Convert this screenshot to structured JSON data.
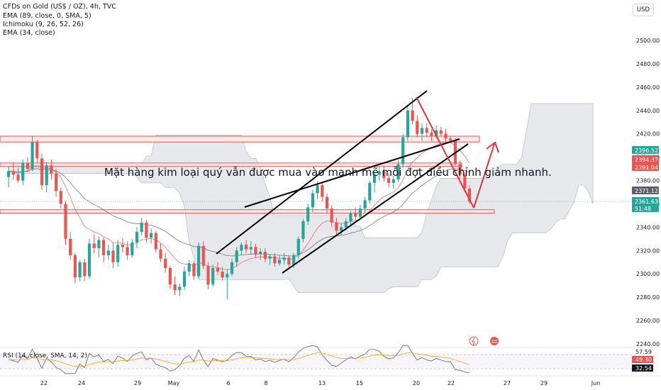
{
  "header": {
    "symbol_line": "CFDs on Gold (US$ / OZ), 4h, TVC",
    "indicators": [
      "EMA (89, close, 0, SMA, 5)",
      "Ichimoku (9, 26, 52, 26)",
      "EMA (34, close)"
    ]
  },
  "currency_button": "USD",
  "annotation": "Mặt hàng kim loại quý vẫn được mua vào mạnh mẽ mỗi đợt điều chỉnh giảm nhanh.",
  "rsi": {
    "label": "RSI (14, close, SMA, 14, 2)",
    "axis_labels": [
      "57.59",
      "32.54"
    ],
    "value_badges": [
      {
        "text": "49.30",
        "color": "#ef5350"
      },
      {
        "text": "32.54",
        "color": "#131722"
      }
    ]
  },
  "colors": {
    "up": "#26a69a",
    "down": "#ef5350",
    "cloud": "#c7cbd3",
    "ema_red": "#ef5350",
    "ema_dark": "#5d606b",
    "trendline": "#000000",
    "arrow": "#e8323c",
    "zone_border": "#ef5350",
    "zone_fill": "#fde9e9"
  },
  "chart_data": {
    "type": "candlestick",
    "symbol": "CFDs on Gold (US$ / OZ)",
    "timeframe": "4h",
    "y_axis": {
      "ticks": [
        2240,
        2260,
        2280,
        2300,
        2320,
        2340,
        2360,
        2380,
        2400,
        2420,
        2440,
        2460,
        2480,
        2500
      ],
      "labels": [
        "2240.00",
        "2260.00",
        "2280.00",
        "2300.00",
        "2320.00",
        "2340.00",
        "2360.00",
        "2380.00",
        "2400.00",
        "2420.00",
        "2440.00",
        "2460.00",
        "2480.00",
        "2500.00"
      ],
      "range": [
        2235,
        2520
      ]
    },
    "x_axis": {
      "labels": [
        "22",
        "24",
        "29",
        "May",
        "6",
        "8",
        "13",
        "15",
        "20",
        "22",
        "27",
        "29",
        "Jun"
      ]
    },
    "price_badges": [
      {
        "text": "2396.52",
        "color": "#26a69a"
      },
      {
        "text": "2394.37",
        "color": "#ef5350"
      },
      {
        "text": "2391.04",
        "color": "#ef5350"
      },
      {
        "text": "2371.12",
        "color": "#5d606b"
      },
      {
        "text": "2361.63",
        "color": "#26a69a"
      },
      {
        "text": "51:48",
        "color": "#26a69a"
      }
    ],
    "zones": [
      {
        "low": 2413,
        "high": 2418
      },
      {
        "low": 2392,
        "high": 2395
      },
      {
        "low": 2352,
        "high": 2355
      }
    ],
    "ohlc": [
      [
        2383,
        2392,
        2374,
        2388
      ],
      [
        2388,
        2396,
        2381,
        2385
      ],
      [
        2385,
        2391,
        2378,
        2380
      ],
      [
        2380,
        2398,
        2376,
        2395
      ],
      [
        2395,
        2400,
        2387,
        2390
      ],
      [
        2390,
        2418,
        2388,
        2413
      ],
      [
        2413,
        2415,
        2395,
        2399
      ],
      [
        2399,
        2403,
        2372,
        2376
      ],
      [
        2376,
        2396,
        2370,
        2393
      ],
      [
        2393,
        2398,
        2381,
        2386
      ],
      [
        2386,
        2390,
        2366,
        2371
      ],
      [
        2371,
        2374,
        2356,
        2360
      ],
      [
        2360,
        2362,
        2325,
        2330
      ],
      [
        2330,
        2336,
        2312,
        2316
      ],
      [
        2316,
        2318,
        2292,
        2297
      ],
      [
        2297,
        2312,
        2294,
        2310
      ],
      [
        2310,
        2313,
        2294,
        2298
      ],
      [
        2298,
        2330,
        2296,
        2326
      ],
      [
        2326,
        2334,
        2318,
        2322
      ],
      [
        2322,
        2332,
        2314,
        2329
      ],
      [
        2329,
        2331,
        2310,
        2316
      ],
      [
        2316,
        2325,
        2312,
        2320
      ],
      [
        2320,
        2327,
        2305,
        2310
      ],
      [
        2310,
        2329,
        2306,
        2325
      ],
      [
        2325,
        2331,
        2318,
        2323
      ],
      [
        2323,
        2328,
        2312,
        2316
      ],
      [
        2316,
        2330,
        2314,
        2327
      ],
      [
        2327,
        2340,
        2322,
        2336
      ],
      [
        2336,
        2348,
        2333,
        2344
      ],
      [
        2344,
        2346,
        2327,
        2331
      ],
      [
        2331,
        2339,
        2326,
        2335
      ],
      [
        2335,
        2337,
        2318,
        2321
      ],
      [
        2321,
        2326,
        2310,
        2313
      ],
      [
        2313,
        2318,
        2301,
        2305
      ],
      [
        2305,
        2307,
        2287,
        2291
      ],
      [
        2291,
        2298,
        2282,
        2286
      ],
      [
        2286,
        2292,
        2281,
        2289
      ],
      [
        2289,
        2306,
        2286,
        2302
      ],
      [
        2302,
        2312,
        2298,
        2309
      ],
      [
        2309,
        2311,
        2295,
        2298
      ],
      [
        2298,
        2327,
        2296,
        2324
      ],
      [
        2324,
        2328,
        2304,
        2307
      ],
      [
        2307,
        2310,
        2287,
        2291
      ],
      [
        2291,
        2308,
        2289,
        2305
      ],
      [
        2305,
        2310,
        2299,
        2302
      ],
      [
        2302,
        2306,
        2294,
        2297
      ],
      [
        2297,
        2304,
        2278,
        2300
      ],
      [
        2300,
        2313,
        2298,
        2310
      ],
      [
        2310,
        2323,
        2306,
        2320
      ],
      [
        2320,
        2327,
        2316,
        2325
      ],
      [
        2325,
        2329,
        2318,
        2321
      ],
      [
        2321,
        2328,
        2317,
        2323
      ],
      [
        2323,
        2326,
        2314,
        2317
      ],
      [
        2317,
        2322,
        2312,
        2319
      ],
      [
        2319,
        2322,
        2310,
        2313
      ],
      [
        2313,
        2317,
        2308,
        2315
      ],
      [
        2315,
        2318,
        2306,
        2309
      ],
      [
        2309,
        2316,
        2307,
        2312
      ],
      [
        2312,
        2318,
        2308,
        2314
      ],
      [
        2314,
        2316,
        2306,
        2308
      ],
      [
        2308,
        2318,
        2305,
        2316
      ],
      [
        2316,
        2332,
        2313,
        2330
      ],
      [
        2330,
        2347,
        2327,
        2345
      ],
      [
        2345,
        2360,
        2342,
        2357
      ],
      [
        2357,
        2372,
        2353,
        2369
      ],
      [
        2369,
        2379,
        2364,
        2376
      ],
      [
        2376,
        2378,
        2362,
        2366
      ],
      [
        2366,
        2369,
        2352,
        2356
      ],
      [
        2356,
        2359,
        2340,
        2344
      ],
      [
        2344,
        2348,
        2334,
        2337
      ],
      [
        2337,
        2343,
        2333,
        2340
      ],
      [
        2340,
        2348,
        2337,
        2345
      ],
      [
        2345,
        2354,
        2342,
        2352
      ],
      [
        2352,
        2357,
        2346,
        2349
      ],
      [
        2349,
        2359,
        2347,
        2356
      ],
      [
        2356,
        2366,
        2352,
        2363
      ],
      [
        2363,
        2380,
        2360,
        2378
      ],
      [
        2378,
        2388,
        2370,
        2385
      ],
      [
        2385,
        2392,
        2380,
        2388
      ],
      [
        2388,
        2393,
        2379,
        2382
      ],
      [
        2382,
        2386,
        2374,
        2378
      ],
      [
        2378,
        2384,
        2373,
        2381
      ],
      [
        2381,
        2397,
        2379,
        2394
      ],
      [
        2394,
        2420,
        2391,
        2417
      ],
      [
        2417,
        2444,
        2414,
        2440
      ],
      [
        2440,
        2451,
        2428,
        2431
      ],
      [
        2431,
        2436,
        2417,
        2420
      ],
      [
        2420,
        2429,
        2414,
        2425
      ],
      [
        2425,
        2429,
        2417,
        2421
      ],
      [
        2421,
        2424,
        2414,
        2418
      ],
      [
        2418,
        2427,
        2416,
        2423
      ],
      [
        2423,
        2426,
        2418,
        2420
      ],
      [
        2420,
        2424,
        2413,
        2416
      ],
      [
        2416,
        2418,
        2412,
        2414
      ],
      [
        2414,
        2416,
        2392,
        2394
      ],
      [
        2394,
        2397,
        2382,
        2385
      ],
      [
        2385,
        2387,
        2370,
        2373
      ],
      [
        2373,
        2376,
        2360,
        2362
      ]
    ],
    "trendlines": [
      {
        "from": [
          6.5,
          2330
        ],
        "to": [
          64.5,
          2376
        ]
      },
      {
        "from": [
          64.5,
          2376
        ],
        "to": [
          99.5,
          2414
        ]
      },
      {
        "from": [
          10.5,
          2362
        ],
        "to": [
          33.3,
          2396
        ]
      },
      {
        "from": [
          -6.5,
          2300
        ],
        "to": [
          34.3,
          2412
        ]
      },
      {
        "from": [
          -6.3,
          2369
        ],
        "to": [
          35.3,
          2438
        ]
      }
    ]
  }
}
